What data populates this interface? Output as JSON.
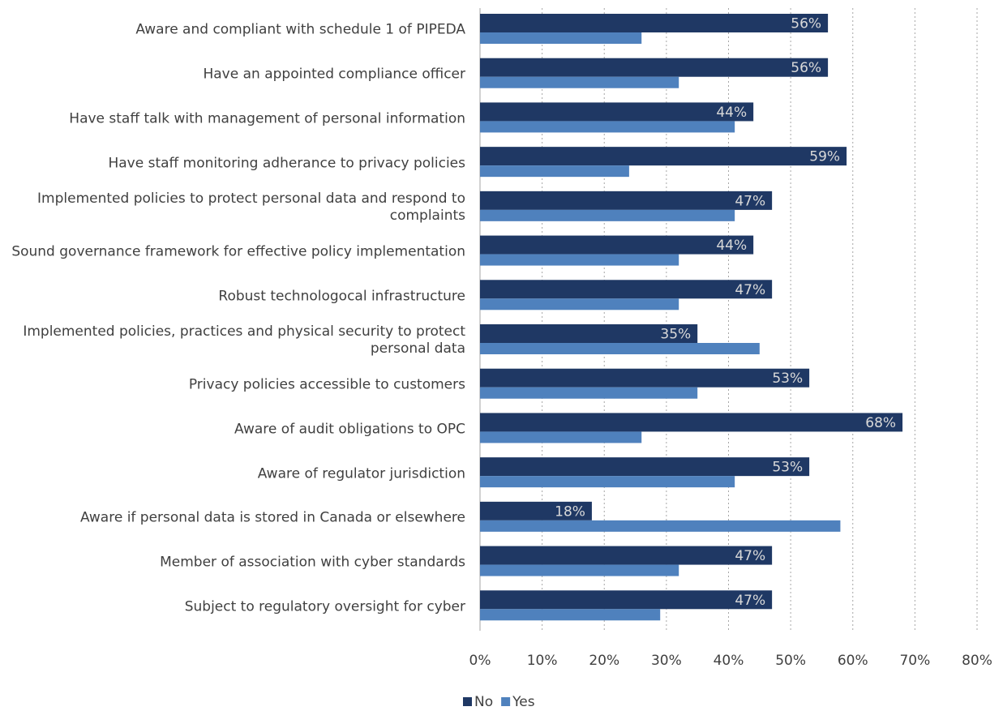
{
  "chart_data": {
    "type": "hbar",
    "categories": [
      "Aware and compliant with schedule 1 of PIPEDA",
      "Have an appointed compliance officer",
      "Have staff talk with management of personal information",
      "Have staff monitoring adherance to privacy policies",
      "Implemented policies to protect personal data and respond to complaints",
      "Sound governance framework for effective policy implementation",
      "Robust technologocal infrastructure",
      "Implemented policies, practices and physical security to protect personal data",
      "Privacy policies accessible to customers",
      "Aware of audit obligations to OPC",
      "Aware of regulator jurisdiction",
      "Aware if personal data is stored in Canada or elsewhere",
      "Member of association with cyber standards",
      "Subject to regulatory oversight for cyber"
    ],
    "series": [
      {
        "name": "No",
        "color": "#1f3864",
        "values": [
          56,
          56,
          44,
          59,
          47,
          44,
          47,
          35,
          53,
          68,
          53,
          18,
          47,
          47
        ],
        "value_labels": [
          "56%",
          "56%",
          "44%",
          "59%",
          "47%",
          "44%",
          "47%",
          "35%",
          "53%",
          "68%",
          "53%",
          "18%",
          "47%",
          "47%"
        ]
      },
      {
        "name": "Yes",
        "color": "#4f81bd",
        "values": [
          26,
          32,
          41,
          24,
          41,
          32,
          32,
          45,
          35,
          26,
          41,
          58,
          32,
          29
        ]
      }
    ],
    "xlim": [
      0,
      80
    ],
    "xticks": [
      {
        "value": 0,
        "label": "0%"
      },
      {
        "value": 10,
        "label": "10%"
      },
      {
        "value": 20,
        "label": "20%"
      },
      {
        "value": 30,
        "label": "30%"
      },
      {
        "value": 40,
        "label": "40%"
      },
      {
        "value": 50,
        "label": "50%"
      },
      {
        "value": 60,
        "label": "60%"
      },
      {
        "value": 70,
        "label": "70%"
      },
      {
        "value": 80,
        "label": "80%"
      }
    ],
    "grid": true,
    "legend": "bottom"
  }
}
